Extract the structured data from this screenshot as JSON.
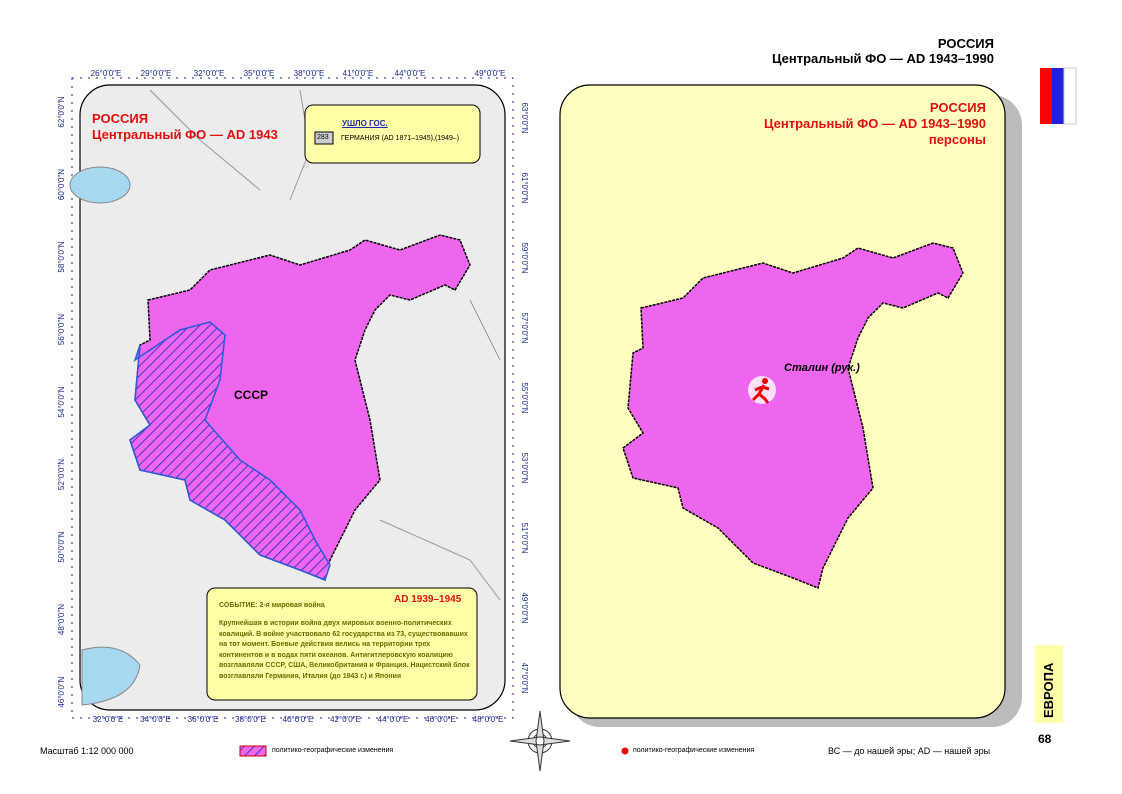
{
  "header": {
    "title": "РОССИЯ",
    "subtitle": "Центральный ФО — AD 1943–1990"
  },
  "left_map": {
    "title": "РОССИЯ",
    "subtitle": "Центральный ФО — AD 1943",
    "legend": {
      "title": "УШЛО ГОС.",
      "code": "283",
      "label": "ГЕРМАНИЯ (AD 1871–1945),(1949–)"
    },
    "region_label": "СССР",
    "top_ticks": [
      "26°0'0\"E",
      "29°0'0\"E",
      "32°0'0\"E",
      "35°0'0\"E",
      "38°0'0\"E",
      "41°0'0\"E",
      "44°0'0\"E",
      "49°0'0\"E"
    ],
    "bottom_ticks": [
      "32°0'0\"E",
      "34°0'0\"E",
      "36°0'0\"E",
      "38°0'0\"E",
      "40°0'0\"E",
      "42°0'0\"E",
      "44°0'0\"E",
      "46°0'0\"E",
      "48°0'0\"E"
    ],
    "left_ticks": [
      "62°0'0\"N",
      "60°0'0\"N",
      "58°0'0\"N",
      "56°0'0\"N",
      "54°0'0\"N",
      "52°0'0\"N",
      "50°0'0\"N",
      "48°0'0\"N",
      "46°0'0\"N"
    ],
    "right_ticks": [
      "63°0'0\"N",
      "61°0'0\"N",
      "59°0'0\"N",
      "57°0'0\"N",
      "55°0'0\"N",
      "53°0'0\"N",
      "51°0'0\"N",
      "49°0'0\"N",
      "47°0'0\"N"
    ],
    "event": {
      "period": "AD 1939–1945",
      "title": "СОБЫТИЕ: 2-я мировая война",
      "text": "Крупнейшая в истории война двух мировых военно-политических коалиций. В войне участвовало 62 государства из 73, существовавших на тот момент. Боевые действия велись на территории трех континентов и в водах пяти океанов. Антигитлеровскую коалицию возглавляли СССР, США, Великобритания и Франция. Нацистский блок возглавляли Германия, Италия (до 1943 г.) и Япония"
    }
  },
  "right_map": {
    "title": "РОССИЯ",
    "subtitle": "Центральный ФО — AD 1943–1990",
    "subtitle2": "персоны",
    "person": "Сталин (рук.)"
  },
  "footer": {
    "scale": "Масштаб 1:12 000 000",
    "hatch_legend": "политико-географические изменения",
    "dot_legend": "политико-географические изменения",
    "era_note": "ВС — до нашей эры; AD — нашей эры"
  },
  "side_tab": "ЕВРОПА",
  "page_number": "68"
}
